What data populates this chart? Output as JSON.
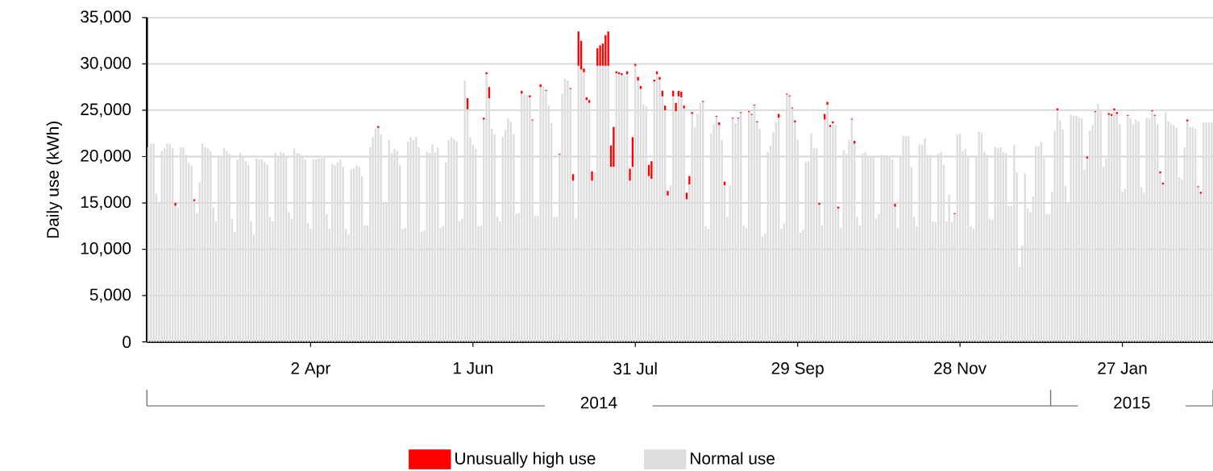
{
  "chart_data": {
    "type": "bar",
    "stacked": true,
    "ylabel": "Daily use (kWh)",
    "grid": "y",
    "legend": "bottom",
    "xlim": [
      "2014-01-31T12:00",
      "2015-03-01T12:00"
    ],
    "xticks": [
      {
        "value": "2014-04-02",
        "label": "2 Apr"
      },
      {
        "value": "2014-06-01",
        "label": "1 Jun"
      },
      {
        "value": "2014-07-31",
        "label": "31 Jul"
      },
      {
        "value": "2014-09-29",
        "label": "29 Sep"
      },
      {
        "value": "2014-11-28",
        "label": "28 Nov"
      },
      {
        "value": "2015-01-27",
        "label": "27 Jan"
      }
    ],
    "ylim": [
      0,
      35000
    ],
    "yticks": [
      0,
      {
        "value": 5000,
        "label": "5,000"
      },
      {
        "value": 10000,
        "label": "10,000"
      },
      {
        "value": 15000,
        "label": "15,000"
      },
      {
        "value": 20000,
        "label": "20,000"
      },
      {
        "value": 25000,
        "label": "25,000"
      },
      {
        "value": 30000,
        "label": "30,000"
      },
      {
        "value": 35000,
        "label": "35,000"
      }
    ],
    "annotations": [
      "2014",
      "2015"
    ],
    "x": [
      "2014-02-01",
      "2014-02-02",
      "2014-02-03",
      "2014-02-04",
      "2014-02-05",
      "2014-02-06",
      "2014-02-07",
      "2014-02-08",
      "2014-02-09",
      "2014-02-10",
      "2014-02-11",
      "2014-02-12",
      "2014-02-13",
      "2014-02-14",
      "2014-02-15",
      "2014-02-16",
      "2014-02-17",
      "2014-02-18",
      "2014-02-19",
      "2014-02-20",
      "2014-02-21",
      "2014-02-22",
      "2014-02-23",
      "2014-02-24",
      "2014-02-25",
      "2014-02-26",
      "2014-02-27",
      "2014-02-28",
      "2014-03-01",
      "2014-03-02",
      "2014-03-03",
      "2014-03-04",
      "2014-03-05",
      "2014-03-06",
      "2014-03-07",
      "2014-03-08",
      "2014-03-09",
      "2014-03-10",
      "2014-03-11",
      "2014-03-12",
      "2014-03-13",
      "2014-03-14",
      "2014-03-15",
      "2014-03-16",
      "2014-03-17",
      "2014-03-18",
      "2014-03-19",
      "2014-03-20",
      "2014-03-21",
      "2014-03-22",
      "2014-03-23",
      "2014-03-24",
      "2014-03-25",
      "2014-03-26",
      "2014-03-27",
      "2014-03-28",
      "2014-03-29",
      "2014-03-30",
      "2014-03-31",
      "2014-04-01",
      "2014-04-02",
      "2014-04-03",
      "2014-04-04",
      "2014-04-05",
      "2014-04-06",
      "2014-04-07",
      "2014-04-08",
      "2014-04-09",
      "2014-04-10",
      "2014-04-11",
      "2014-04-12",
      "2014-04-13",
      "2014-04-14",
      "2014-04-15",
      "2014-04-16",
      "2014-04-17",
      "2014-04-18",
      "2014-04-19",
      "2014-04-20",
      "2014-04-21",
      "2014-04-22",
      "2014-04-23",
      "2014-04-24",
      "2014-04-25",
      "2014-04-26",
      "2014-04-27",
      "2014-04-28",
      "2014-04-29",
      "2014-04-30",
      "2014-05-01",
      "2014-05-02",
      "2014-05-03",
      "2014-05-04",
      "2014-05-05",
      "2014-05-06",
      "2014-05-07",
      "2014-05-08",
      "2014-05-09",
      "2014-05-10",
      "2014-05-11",
      "2014-05-12",
      "2014-05-13",
      "2014-05-14",
      "2014-05-15",
      "2014-05-16",
      "2014-05-17",
      "2014-05-18",
      "2014-05-19",
      "2014-05-20",
      "2014-05-21",
      "2014-05-22",
      "2014-05-23",
      "2014-05-24",
      "2014-05-25",
      "2014-05-26",
      "2014-05-27",
      "2014-05-28",
      "2014-05-29",
      "2014-05-30",
      "2014-05-31",
      "2014-06-01",
      "2014-06-02",
      "2014-06-03",
      "2014-06-04",
      "2014-06-05",
      "2014-06-06",
      "2014-06-07",
      "2014-06-08",
      "2014-06-09",
      "2014-06-10",
      "2014-06-11",
      "2014-06-12",
      "2014-06-13",
      "2014-06-14",
      "2014-06-15",
      "2014-06-16",
      "2014-06-17",
      "2014-06-18",
      "2014-06-19",
      "2014-06-20",
      "2014-06-21",
      "2014-06-22",
      "2014-06-23",
      "2014-06-24",
      "2014-06-25",
      "2014-06-26",
      "2014-06-27",
      "2014-06-28",
      "2014-06-29",
      "2014-06-30",
      "2014-07-01",
      "2014-07-02",
      "2014-07-03",
      "2014-07-04",
      "2014-07-05",
      "2014-07-06",
      "2014-07-07",
      "2014-07-08",
      "2014-07-09",
      "2014-07-10",
      "2014-07-11",
      "2014-07-12",
      "2014-07-13",
      "2014-07-14",
      "2014-07-15",
      "2014-07-16",
      "2014-07-17",
      "2014-07-18",
      "2014-07-19",
      "2014-07-20",
      "2014-07-21",
      "2014-07-22",
      "2014-07-23",
      "2014-07-24",
      "2014-07-25",
      "2014-07-26",
      "2014-07-27",
      "2014-07-28",
      "2014-07-29",
      "2014-07-30",
      "2014-07-31",
      "2014-08-01",
      "2014-08-02",
      "2014-08-03",
      "2014-08-04",
      "2014-08-05",
      "2014-08-06",
      "2014-08-07",
      "2014-08-08",
      "2014-08-09",
      "2014-08-10",
      "2014-08-11",
      "2014-08-12",
      "2014-08-13",
      "2014-08-14",
      "2014-08-15",
      "2014-08-16",
      "2014-08-17",
      "2014-08-18",
      "2014-08-19",
      "2014-08-20",
      "2014-08-21",
      "2014-08-22",
      "2014-08-23",
      "2014-08-24",
      "2014-08-25",
      "2014-08-26",
      "2014-08-27",
      "2014-08-28",
      "2014-08-29",
      "2014-08-30",
      "2014-08-31",
      "2014-09-01",
      "2014-09-02",
      "2014-09-03",
      "2014-09-04",
      "2014-09-05",
      "2014-09-06",
      "2014-09-07",
      "2014-09-08",
      "2014-09-09",
      "2014-09-10",
      "2014-09-11",
      "2014-09-12",
      "2014-09-13",
      "2014-09-14",
      "2014-09-15",
      "2014-09-16",
      "2014-09-17",
      "2014-09-18",
      "2014-09-19",
      "2014-09-20",
      "2014-09-21",
      "2014-09-22",
      "2014-09-23",
      "2014-09-24",
      "2014-09-25",
      "2014-09-26",
      "2014-09-27",
      "2014-09-28",
      "2014-09-29",
      "2014-09-30",
      "2014-10-01",
      "2014-10-02",
      "2014-10-03",
      "2014-10-04",
      "2014-10-05",
      "2014-10-06",
      "2014-10-07",
      "2014-10-08",
      "2014-10-09",
      "2014-10-10",
      "2014-10-11",
      "2014-10-12",
      "2014-10-13",
      "2014-10-14",
      "2014-10-15",
      "2014-10-16",
      "2014-10-17",
      "2014-10-18",
      "2014-10-19",
      "2014-10-20",
      "2014-10-21",
      "2014-10-22",
      "2014-10-23",
      "2014-10-24",
      "2014-10-25",
      "2014-10-26",
      "2014-10-27",
      "2014-10-28",
      "2014-10-29",
      "2014-10-30",
      "2014-10-31",
      "2014-11-01",
      "2014-11-02",
      "2014-11-03",
      "2014-11-04",
      "2014-11-05",
      "2014-11-06",
      "2014-11-07",
      "2014-11-08",
      "2014-11-09",
      "2014-11-10",
      "2014-11-11",
      "2014-11-12",
      "2014-11-13",
      "2014-11-14",
      "2014-11-15",
      "2014-11-16",
      "2014-11-17",
      "2014-11-18",
      "2014-11-19",
      "2014-11-20",
      "2014-11-21",
      "2014-11-22",
      "2014-11-23",
      "2014-11-24",
      "2014-11-25",
      "2014-11-26",
      "2014-11-27",
      "2014-11-28",
      "2014-11-29",
      "2014-11-30",
      "2014-12-01",
      "2014-12-02",
      "2014-12-03",
      "2014-12-04",
      "2014-12-05",
      "2014-12-06",
      "2014-12-07",
      "2014-12-08",
      "2014-12-09",
      "2014-12-10",
      "2014-12-11",
      "2014-12-12",
      "2014-12-13",
      "2014-12-14",
      "2014-12-15",
      "2014-12-16",
      "2014-12-17",
      "2014-12-18",
      "2014-12-19",
      "2014-12-20",
      "2014-12-21",
      "2014-12-22",
      "2014-12-23",
      "2014-12-24",
      "2014-12-25",
      "2014-12-26",
      "2014-12-27",
      "2014-12-28",
      "2014-12-29",
      "2014-12-30",
      "2014-12-31",
      "2015-01-01",
      "2015-01-02",
      "2015-01-03",
      "2015-01-04",
      "2015-01-05",
      "2015-01-06",
      "2015-01-07",
      "2015-01-08",
      "2015-01-09",
      "2015-01-10",
      "2015-01-11",
      "2015-01-12",
      "2015-01-13",
      "2015-01-14",
      "2015-01-15",
      "2015-01-16",
      "2015-01-17",
      "2015-01-18",
      "2015-01-19",
      "2015-01-20",
      "2015-01-21",
      "2015-01-22",
      "2015-01-23",
      "2015-01-24",
      "2015-01-25",
      "2015-01-26",
      "2015-01-27",
      "2015-01-28",
      "2015-01-29",
      "2015-01-30",
      "2015-01-31",
      "2015-02-01",
      "2015-02-02",
      "2015-02-03",
      "2015-02-04",
      "2015-02-05",
      "2015-02-06",
      "2015-02-07",
      "2015-02-08",
      "2015-02-09",
      "2015-02-10",
      "2015-02-11",
      "2015-02-12",
      "2015-02-13",
      "2015-02-14",
      "2015-02-15",
      "2015-02-16",
      "2015-02-17",
      "2015-02-18",
      "2015-02-19",
      "2015-02-20",
      "2015-02-21",
      "2015-02-22",
      "2015-02-23",
      "2015-02-24",
      "2015-02-25",
      "2015-02-26",
      "2015-02-27",
      "2015-02-28",
      "2015-03-01"
    ],
    "series": [
      {
        "name": "Normal use",
        "color": "#dddddd",
        "values": [
          21000,
          21400,
          21400,
          16000,
          15000,
          20600,
          20900,
          21400,
          21400,
          20900,
          14700,
          14500,
          21000,
          21000,
          20200,
          19300,
          19000,
          15200,
          13900,
          17200,
          21400,
          21000,
          20900,
          20600,
          14500,
          13000,
          20000,
          20000,
          20900,
          20600,
          20300,
          13300,
          11900,
          19700,
          20400,
          20100,
          19500,
          19100,
          13000,
          11600,
          19800,
          19700,
          19700,
          19400,
          19100,
          13500,
          13000,
          20400,
          20000,
          20500,
          20400,
          20000,
          14000,
          13300,
          20900,
          20400,
          20300,
          20100,
          19700,
          12800,
          12200,
          19700,
          19700,
          19800,
          19800,
          19900,
          13800,
          12200,
          19200,
          19100,
          19400,
          19700,
          18900,
          12200,
          11600,
          18600,
          18700,
          19000,
          18900,
          17900,
          12600,
          12600,
          21000,
          22100,
          23000,
          23100,
          22400,
          14900,
          14900,
          21800,
          20400,
          20800,
          20600,
          19100,
          12200,
          12300,
          21600,
          22100,
          21800,
          22100,
          21000,
          11900,
          12000,
          20500,
          20400,
          21300,
          20500,
          21000,
          12300,
          12500,
          19400,
          21800,
          22100,
          21900,
          21600,
          13000,
          13300,
          28200,
          25100,
          22100,
          21300,
          20800,
          12500,
          12600,
          24000,
          28900,
          26300,
          23000,
          22400,
          13500,
          13000,
          22100,
          22900,
          24100,
          23800,
          22400,
          13800,
          13900,
          26800,
          26700,
          26600,
          26400,
          23900,
          13600,
          13600,
          27500,
          27600,
          27100,
          25500,
          23600,
          13500,
          13500,
          20200,
          26800,
          28400,
          28200,
          27300,
          17400,
          13300,
          29800,
          29400,
          29100,
          26100,
          25800,
          17400,
          18300,
          29800,
          29800,
          29800,
          29800,
          29800,
          18900,
          18900,
          29000,
          28900,
          28800,
          28700,
          28900,
          17400,
          18900,
          29800,
          28200,
          27300,
          25600,
          25400,
          17900,
          17600,
          28100,
          28900,
          28300,
          26500,
          25000,
          15800,
          16900,
          26500,
          24900,
          26500,
          26400,
          25200,
          15400,
          17000,
          24600,
          23200,
          24600,
          25800,
          25900,
          12500,
          12200,
          22500,
          23500,
          24300,
          23400,
          21800,
          16900,
          13500,
          16900,
          24100,
          23600,
          24100,
          24700,
          12600,
          12300,
          24800,
          24500,
          25500,
          23700,
          23000,
          11400,
          11700,
          20500,
          21200,
          22600,
          23700,
          24200,
          12200,
          12800,
          26700,
          26500,
          25200,
          23700,
          21800,
          11800,
          12100,
          19400,
          19500,
          22500,
          20900,
          20900,
          14800,
          12600,
          24000,
          25600,
          23200,
          23600,
          23400,
          14400,
          12300,
          20700,
          20300,
          21800,
          24000,
          21400,
          13500,
          12600,
          20300,
          20500,
          20100,
          20100,
          20100,
          13300,
          13800,
          20200,
          20100,
          20100,
          20000,
          19700,
          14600,
          12300,
          20100,
          22200,
          22200,
          22200,
          18900,
          13500,
          12500,
          21300,
          21300,
          22000,
          20200,
          20200,
          13000,
          12900,
          20300,
          20500,
          19100,
          13000,
          15900,
          12900,
          13800,
          22400,
          22500,
          20600,
          20800,
          20100,
          12500,
          12200,
          20100,
          22700,
          22500,
          20500,
          20200,
          13300,
          13200,
          21000,
          20900,
          21000,
          20500,
          20400,
          14700,
          14700,
          21300,
          18300,
          8100,
          10400,
          18200,
          14400,
          14000,
          15700,
          21100,
          21100,
          21600,
          19800,
          13800,
          13800,
          16200,
          22800,
          25000,
          23900,
          22900,
          16800,
          14900,
          24500,
          24400,
          24400,
          24200,
          24100,
          18600,
          19800,
          22800,
          23400,
          24800,
          25700,
          24900,
          18900,
          19800,
          24500,
          24400,
          25000,
          24600,
          23500,
          16200,
          16500,
          24400,
          24100,
          23500,
          24000,
          23800,
          16700,
          16100,
          24200,
          24100,
          24900,
          24400,
          23500,
          18200,
          17000,
          24800,
          23800,
          23500,
          23400,
          23100,
          17800,
          17500,
          21000,
          23800,
          23200,
          23200,
          23000,
          16700,
          16000,
          23700,
          23700,
          23700,
          23700
        ]
      },
      {
        "name": "Unusually high use",
        "color": "#ff0000",
        "values": [
          null,
          null,
          null,
          null,
          null,
          null,
          null,
          null,
          null,
          null,
          300,
          null,
          null,
          null,
          null,
          null,
          null,
          200,
          null,
          null,
          null,
          null,
          null,
          null,
          null,
          null,
          null,
          null,
          null,
          null,
          null,
          null,
          null,
          null,
          null,
          null,
          null,
          null,
          null,
          null,
          null,
          null,
          null,
          null,
          null,
          null,
          null,
          null,
          null,
          null,
          null,
          null,
          null,
          null,
          null,
          null,
          null,
          null,
          null,
          null,
          null,
          null,
          null,
          null,
          null,
          null,
          null,
          null,
          null,
          null,
          null,
          null,
          null,
          null,
          null,
          null,
          null,
          null,
          null,
          null,
          null,
          null,
          null,
          null,
          null,
          200,
          null,
          null,
          null,
          null,
          null,
          null,
          null,
          null,
          null,
          null,
          null,
          null,
          null,
          null,
          null,
          null,
          null,
          null,
          null,
          null,
          null,
          null,
          null,
          null,
          null,
          null,
          null,
          null,
          null,
          null,
          null,
          null,
          1200,
          null,
          null,
          null,
          null,
          null,
          200,
          200,
          1200,
          null,
          null,
          null,
          null,
          null,
          null,
          null,
          null,
          null,
          null,
          null,
          300,
          null,
          null,
          200,
          100,
          null,
          null,
          300,
          null,
          100,
          null,
          null,
          null,
          null,
          100,
          null,
          null,
          null,
          100,
          700,
          null,
          3700,
          3100,
          400,
          300,
          300,
          1000,
          null,
          1900,
          2200,
          2400,
          3300,
          3700,
          2300,
          4300,
          200,
          200,
          200,
          null,
          300,
          1300,
          3200,
          200,
          400,
          300,
          null,
          null,
          1200,
          1900,
          200,
          300,
          300,
          600,
          500,
          500,
          null,
          600,
          900,
          600,
          600,
          300,
          700,
          900,
          200,
          null,
          null,
          null,
          100,
          null,
          null,
          null,
          null,
          100,
          300,
          null,
          400,
          null,
          null,
          100,
          null,
          100,
          100,
          null,
          null,
          100,
          100,
          100,
          100,
          null,
          null,
          null,
          null,
          null,
          null,
          null,
          400,
          null,
          null,
          100,
          100,
          100,
          200,
          null,
          null,
          null,
          null,
          null,
          null,
          null,
          null,
          200,
          null,
          600,
          300,
          200,
          200,
          null,
          200,
          null,
          null,
          null,
          null,
          100,
          300,
          null,
          null,
          null,
          null,
          null,
          null,
          null,
          null,
          null,
          null,
          null,
          null,
          null,
          null,
          300,
          null,
          null,
          null,
          null,
          null,
          null,
          null,
          null,
          null,
          null,
          null,
          null,
          null,
          null,
          null,
          null,
          null,
          null,
          null,
          null,
          null,
          100,
          null,
          null,
          null,
          null,
          null,
          null,
          null,
          null,
          null,
          null,
          null,
          null,
          null,
          null,
          null,
          null,
          null,
          null,
          null,
          null,
          null,
          null,
          null,
          null,
          null,
          null,
          null,
          null,
          null,
          null,
          null,
          null,
          null,
          null,
          null,
          null,
          null,
          200,
          null,
          null,
          null,
          null,
          null,
          null,
          null,
          null,
          null,
          null,
          200,
          null,
          null,
          100,
          null,
          null,
          null,
          null,
          200,
          200,
          200,
          200,
          null,
          null,
          null,
          100,
          null,
          null,
          null,
          null,
          null,
          null,
          null,
          null,
          100,
          100,
          null,
          200,
          200,
          null,
          null,
          null,
          null,
          null,
          null,
          null,
          null,
          200,
          null,
          null,
          null,
          100,
          200,
          null,
          null,
          null,
          null
        ]
      }
    ]
  }
}
